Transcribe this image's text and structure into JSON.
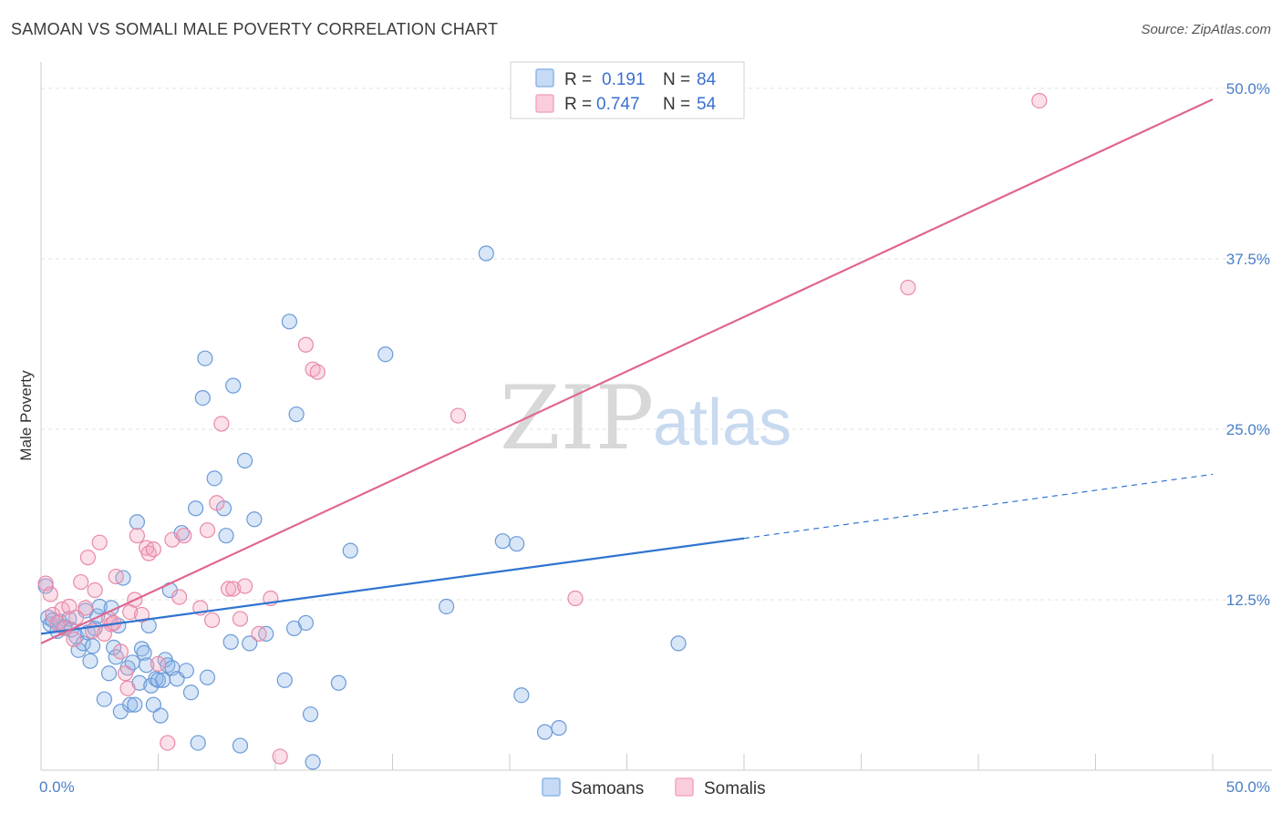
{
  "title": "SAMOAN VS SOMALI MALE POVERTY CORRELATION CHART",
  "source": "Source: ZipAtlas.com",
  "chart_data": {
    "type": "scatter",
    "ylabel": "Male Poverty",
    "xlim": [
      0,
      50
    ],
    "ylim": [
      0,
      50
    ],
    "x_tick_labels": [
      {
        "value": 0,
        "label": "0.0%"
      },
      {
        "value": 50,
        "label": "50.0%"
      }
    ],
    "y_ticks": [
      {
        "value": 12.5,
        "label": "12.5%"
      },
      {
        "value": 25,
        "label": "25.0%"
      },
      {
        "value": 37.5,
        "label": "37.5%"
      },
      {
        "value": 50,
        "label": "50.0%"
      }
    ],
    "watermark": {
      "zip": "ZIP",
      "atlas": "atlas"
    },
    "legend": {
      "r_label": "R =",
      "n_label": "N =",
      "rows": [
        {
          "r": "0.191",
          "n": "84",
          "color": "#8fb6e8"
        },
        {
          "r": "0.747",
          "n": "54",
          "color": "#f4a7c0"
        }
      ]
    },
    "series": [
      {
        "name": "Samoans",
        "color": "#8fb6e8",
        "stroke": "#6a9ad8",
        "trend": {
          "x0": 0,
          "y0": 10.0,
          "x1": 30,
          "y1": 17.0,
          "dash_to_x": 50,
          "dash_to_y": 21.7,
          "color": "#2f74d0"
        },
        "points": [
          [
            0.3,
            11.2
          ],
          [
            0.4,
            10.7
          ],
          [
            0.5,
            11.0
          ],
          [
            0.7,
            10.2
          ],
          [
            0.8,
            10.9
          ],
          [
            1.0,
            10.5
          ],
          [
            1.2,
            11.1
          ],
          [
            1.3,
            10.3
          ],
          [
            1.5,
            9.8
          ],
          [
            1.6,
            8.8
          ],
          [
            1.8,
            9.3
          ],
          [
            1.9,
            11.7
          ],
          [
            2.0,
            10.1
          ],
          [
            2.1,
            8.0
          ],
          [
            2.2,
            9.1
          ],
          [
            2.3,
            10.4
          ],
          [
            2.4,
            11.3
          ],
          [
            2.5,
            12.0
          ],
          [
            2.7,
            5.2
          ],
          [
            2.9,
            7.1
          ],
          [
            3.0,
            11.9
          ],
          [
            3.1,
            9.0
          ],
          [
            3.2,
            8.3
          ],
          [
            3.3,
            10.6
          ],
          [
            3.4,
            4.3
          ],
          [
            3.5,
            14.1
          ],
          [
            3.7,
            7.5
          ],
          [
            3.8,
            4.8
          ],
          [
            3.9,
            7.9
          ],
          [
            4.0,
            4.8
          ],
          [
            4.1,
            18.2
          ],
          [
            4.2,
            6.4
          ],
          [
            4.3,
            8.9
          ],
          [
            4.4,
            8.6
          ],
          [
            4.5,
            7.7
          ],
          [
            4.6,
            10.6
          ],
          [
            4.7,
            6.2
          ],
          [
            4.8,
            4.8
          ],
          [
            4.9,
            6.7
          ],
          [
            5.0,
            6.6
          ],
          [
            5.1,
            4.0
          ],
          [
            5.2,
            6.6
          ],
          [
            5.3,
            8.1
          ],
          [
            5.4,
            7.7
          ],
          [
            5.5,
            13.2
          ],
          [
            5.6,
            7.5
          ],
          [
            5.8,
            6.7
          ],
          [
            6.0,
            17.4
          ],
          [
            6.2,
            7.3
          ],
          [
            6.4,
            5.7
          ],
          [
            6.6,
            19.2
          ],
          [
            6.7,
            2.0
          ],
          [
            6.9,
            27.3
          ],
          [
            7.0,
            30.2
          ],
          [
            7.1,
            6.8
          ],
          [
            7.4,
            21.4
          ],
          [
            7.8,
            19.2
          ],
          [
            7.9,
            17.2
          ],
          [
            8.1,
            9.4
          ],
          [
            8.2,
            28.2
          ],
          [
            8.5,
            1.8
          ],
          [
            8.7,
            22.7
          ],
          [
            8.9,
            9.3
          ],
          [
            9.1,
            18.4
          ],
          [
            9.6,
            10.0
          ],
          [
            10.4,
            6.6
          ],
          [
            10.6,
            32.9
          ],
          [
            10.8,
            10.4
          ],
          [
            10.9,
            26.1
          ],
          [
            11.3,
            10.8
          ],
          [
            11.5,
            4.1
          ],
          [
            11.6,
            0.6
          ],
          [
            12.7,
            6.4
          ],
          [
            13.2,
            16.1
          ],
          [
            14.7,
            30.5
          ],
          [
            17.3,
            12.0
          ],
          [
            19.0,
            37.9
          ],
          [
            19.7,
            16.8
          ],
          [
            20.3,
            16.6
          ],
          [
            20.5,
            5.5
          ],
          [
            21.5,
            2.8
          ],
          [
            22.1,
            3.1
          ],
          [
            27.2,
            9.3
          ],
          [
            0.2,
            13.5
          ]
        ]
      },
      {
        "name": "Somalis",
        "color": "#f4a7c0",
        "stroke": "#e889a8",
        "trend": {
          "x0": 0,
          "y0": 9.3,
          "x1": 50,
          "y1": 49.2,
          "color": "#e0668f"
        },
        "points": [
          [
            0.2,
            13.7
          ],
          [
            0.4,
            12.9
          ],
          [
            0.5,
            11.4
          ],
          [
            0.7,
            10.8
          ],
          [
            0.9,
            11.8
          ],
          [
            1.0,
            10.4
          ],
          [
            1.2,
            12.0
          ],
          [
            1.4,
            9.6
          ],
          [
            1.5,
            11.2
          ],
          [
            1.7,
            13.8
          ],
          [
            1.9,
            11.9
          ],
          [
            2.0,
            15.6
          ],
          [
            2.2,
            10.2
          ],
          [
            2.3,
            13.2
          ],
          [
            2.5,
            16.7
          ],
          [
            2.7,
            10.0
          ],
          [
            2.9,
            11.1
          ],
          [
            3.0,
            10.7
          ],
          [
            3.2,
            14.2
          ],
          [
            3.4,
            8.7
          ],
          [
            3.6,
            7.1
          ],
          [
            3.7,
            6.0
          ],
          [
            3.8,
            11.6
          ],
          [
            4.0,
            12.5
          ],
          [
            4.1,
            17.2
          ],
          [
            4.3,
            11.4
          ],
          [
            4.5,
            16.3
          ],
          [
            4.6,
            15.9
          ],
          [
            4.8,
            16.2
          ],
          [
            5.0,
            7.8
          ],
          [
            5.4,
            2.0
          ],
          [
            5.6,
            16.9
          ],
          [
            5.9,
            12.7
          ],
          [
            6.1,
            17.2
          ],
          [
            6.8,
            11.9
          ],
          [
            7.1,
            17.6
          ],
          [
            7.3,
            11.0
          ],
          [
            7.5,
            19.6
          ],
          [
            7.7,
            25.4
          ],
          [
            8.0,
            13.3
          ],
          [
            8.2,
            13.3
          ],
          [
            8.5,
            11.1
          ],
          [
            8.7,
            13.5
          ],
          [
            9.3,
            10.0
          ],
          [
            9.8,
            12.6
          ],
          [
            10.2,
            1.0
          ],
          [
            11.3,
            31.2
          ],
          [
            11.6,
            29.4
          ],
          [
            11.8,
            29.2
          ],
          [
            17.8,
            26.0
          ],
          [
            22.8,
            12.6
          ],
          [
            37.0,
            35.4
          ],
          [
            42.6,
            49.1
          ],
          [
            3.1,
            10.8
          ]
        ]
      }
    ]
  }
}
